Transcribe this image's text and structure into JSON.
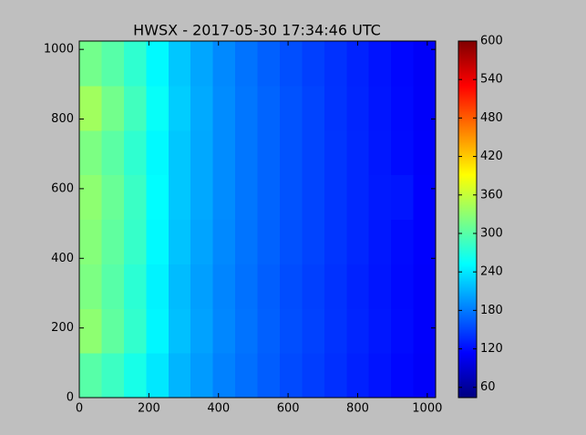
{
  "chart_data": {
    "type": "heatmap",
    "title": "HWSX - 2017-05-30 17:34:46 UTC",
    "colormap": "jet",
    "xlim": [
      0,
      1024
    ],
    "ylim": [
      0,
      1024
    ],
    "xticks": [
      0,
      200,
      400,
      600,
      800,
      1000
    ],
    "yticks": [
      0,
      200,
      400,
      600,
      800,
      1000
    ],
    "clim": [
      44,
      600
    ],
    "cticks": [
      60,
      120,
      180,
      240,
      300,
      360,
      420,
      480,
      540,
      600
    ],
    "z": [
      [
        300,
        285,
        265,
        240,
        212,
        198,
        184,
        174,
        164,
        154,
        147,
        139,
        131,
        124,
        117,
        111
      ],
      [
        330,
        305,
        280,
        248,
        218,
        202,
        187,
        176,
        166,
        156,
        149,
        141,
        133,
        126,
        119,
        112
      ],
      [
        320,
        300,
        276,
        246,
        216,
        200,
        186,
        175,
        165,
        155,
        148,
        140,
        132,
        125,
        118,
        112
      ],
      [
        325,
        305,
        282,
        250,
        220,
        203,
        188,
        177,
        167,
        157,
        150,
        142,
        134,
        126,
        119,
        113
      ],
      [
        330,
        310,
        284,
        252,
        222,
        205,
        190,
        178,
        168,
        158,
        150,
        142,
        134,
        127,
        125,
        113
      ],
      [
        320,
        302,
        278,
        250,
        222,
        205,
        190,
        178,
        168,
        158,
        150,
        142,
        134,
        126,
        119,
        112
      ],
      [
        340,
        315,
        288,
        256,
        225,
        206,
        190,
        178,
        168,
        158,
        150,
        141,
        133,
        125,
        118,
        111
      ],
      [
        315,
        300,
        278,
        250,
        222,
        204,
        188,
        176,
        166,
        156,
        148,
        140,
        132,
        124,
        117,
        110
      ]
    ]
  }
}
